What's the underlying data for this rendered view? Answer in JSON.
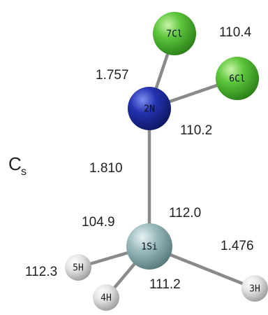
{
  "molecule": {
    "symmetry": {
      "main": "C",
      "sub": "s"
    },
    "atoms": {
      "cl7": {
        "label": "7Cl",
        "element": "Cl",
        "color": "#3fae2a"
      },
      "cl6": {
        "label": "6Cl",
        "element": "Cl",
        "color": "#3fae2a"
      },
      "n2": {
        "label": "2N",
        "element": "N",
        "color": "#1f2a9c"
      },
      "si1": {
        "label": "1Si",
        "element": "Si",
        "color": "#7fa3a6"
      },
      "h5": {
        "label": "5H",
        "element": "H",
        "color": "#d8d8d8"
      },
      "h4": {
        "label": "4H",
        "element": "H",
        "color": "#d8d8d8"
      },
      "h3": {
        "label": "3H",
        "element": "H",
        "color": "#d8d8d8"
      }
    },
    "bond_labels": {
      "n_cl": "1.757",
      "n_si": "1.810",
      "si_h": "1.476"
    },
    "angle_labels": {
      "cl_n_cl": "110.4",
      "cl_n_si": "110.2",
      "n_si_h5": "104.9",
      "n_si_h3": "112.0",
      "h_si_h": "111.2",
      "h5_si_h4": "112.3"
    }
  }
}
